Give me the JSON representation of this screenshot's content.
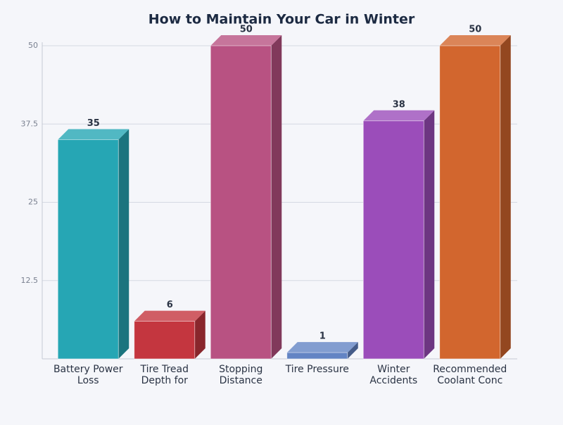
{
  "chart_data": {
    "type": "bar",
    "title": "How to Maintain Your Car in Winter",
    "categories": [
      "Battery Power Loss",
      "Tire Tread Depth for",
      "Stopping Distance",
      "Tire Pressure",
      "Winter Accidents",
      "Recommended Coolant Conc"
    ],
    "values": [
      35,
      6,
      50,
      1,
      38,
      50
    ],
    "colors": [
      "#26a6b4",
      "#c4363f",
      "#b85282",
      "#6384c4",
      "#9b4dba",
      "#d2662e"
    ],
    "ylim": [
      0,
      50
    ],
    "yticks": [
      12.5,
      25,
      37.5,
      50
    ],
    "grid": true
  }
}
